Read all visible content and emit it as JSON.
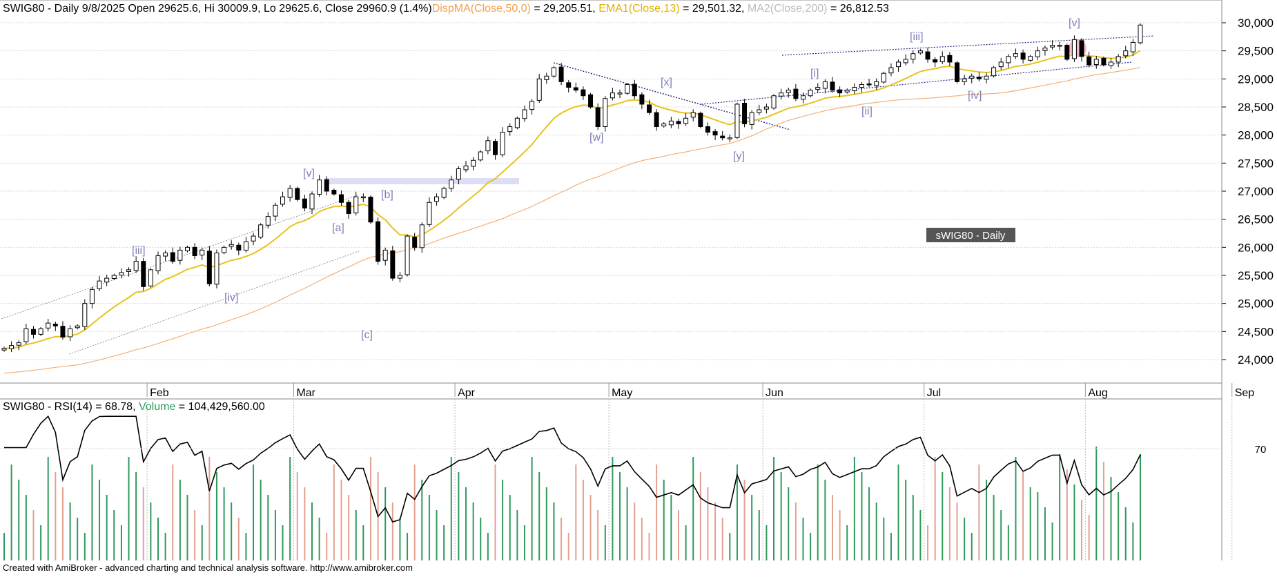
{
  "header": {
    "symbol_line": "SWIG80 - Daily 9/8/2025 Open 29625.6, Hi 30009.9, Lo 29625.6, Close 29960.9 (1.4%)",
    "dispma_label": "DispMA(Close,50,0)",
    "dispma_value": " = 29,205.51, ",
    "ema_label": "EMA1(Close,13)",
    "ema_value": " = 29,501.32, ",
    "ma200_label": "MA2(Close,200)",
    "ma200_value": " = 26,812.53"
  },
  "watermark": "sWIG80 - Daily",
  "lower_header": {
    "rsi_label": "SWIG80 - RSI(14) = 68.78, ",
    "volume_label": "Volume",
    "volume_value": " = 104,429,560.00"
  },
  "footer": "Created with AmiBroker - advanced charting and technical analysis software. http://www.amibroker.com",
  "colors": {
    "candle_up_fill": "#ffffff",
    "candle_down_fill": "#000000",
    "ema13": "#e8c21c",
    "ma50": "#f2b07a",
    "ma200": "#bbbbbb",
    "wave_labels": "#7d7fb8",
    "rsi_line": "#000000",
    "volume_up": "#2e9a5a",
    "volume_down": "#e3a090",
    "grid": "#d0d0d0"
  },
  "chart_data": [
    {
      "type": "candlestick",
      "title": "SWIG80 - Daily",
      "x_axis_months": [
        "Feb",
        "Mar",
        "Apr",
        "May",
        "Jun",
        "Jul",
        "Aug",
        "Sep"
      ],
      "y_ticks": [
        "24,000",
        "24,500",
        "25,000",
        "25,500",
        "26,000",
        "26,500",
        "27,000",
        "27,500",
        "28,000",
        "28,500",
        "29,000",
        "29,500",
        "30,000"
      ],
      "ylim": [
        23600,
        30300
      ],
      "grid": true,
      "last_bar": {
        "date": "9/8/2025",
        "open": 29625.6,
        "high": 30009.9,
        "low": 29625.6,
        "close": 29960.9,
        "change_pct": 1.4
      },
      "indicators": {
        "dispma_close_50": 29205.51,
        "ema_close_13": 29501.32,
        "ma_close_200": 26812.53
      },
      "closes": [
        24200,
        24250,
        24300,
        24550,
        24450,
        24550,
        24650,
        24600,
        24400,
        24550,
        24600,
        25000,
        25250,
        25400,
        25450,
        25500,
        25550,
        25600,
        25750,
        25300,
        25600,
        25850,
        25900,
        25750,
        25950,
        26000,
        25850,
        25950,
        25350,
        25900,
        26000,
        26050,
        25950,
        26100,
        26200,
        26400,
        26550,
        26750,
        26900,
        27050,
        26850,
        26700,
        26950,
        27200,
        27000,
        26950,
        26800,
        26600,
        26900,
        26900,
        26450,
        25750,
        25950,
        25450,
        25500,
        26200,
        26000,
        26400,
        26800,
        26900,
        27050,
        27200,
        27400,
        27450,
        27550,
        27700,
        27900,
        27650,
        28050,
        28150,
        28300,
        28450,
        28600,
        29000,
        29050,
        29200,
        28950,
        28850,
        28800,
        28700,
        28500,
        28150,
        28650,
        28750,
        28750,
        28900,
        28700,
        28550,
        28400,
        28150,
        28200,
        28250,
        28200,
        28300,
        28400,
        28150,
        28050,
        28000,
        27950,
        27950,
        28550,
        28200,
        28400,
        28450,
        28500,
        28700,
        28750,
        28800,
        28650,
        28700,
        28800,
        28850,
        28950,
        28800,
        28750,
        28800,
        28850,
        28900,
        28900,
        28950,
        29100,
        29200,
        29300,
        29350,
        29450,
        29500,
        29350,
        29300,
        29400,
        29300,
        28950,
        29000,
        29050,
        29000,
        29050,
        29200,
        29300,
        29400,
        29450,
        29350,
        29400,
        29500,
        29550,
        29600,
        29600,
        29350,
        29700,
        29400,
        29250,
        29350,
        29250,
        29300,
        29400,
        29500,
        29650,
        29960
      ]
    },
    {
      "type": "line",
      "title": "SWIG80 - RSI(14)",
      "series": [
        {
          "name": "RSI(14)",
          "last_value": 68.78
        }
      ],
      "y_ticks": [
        "70"
      ],
      "ylim": [
        20,
        85
      ]
    },
    {
      "type": "bar",
      "series": [
        {
          "name": "Volume",
          "last_value": 104429560.0
        }
      ]
    }
  ],
  "wave_labels": [
    "[iii]",
    "[iv]",
    "[v]",
    "[a]",
    "[b]",
    "[c]",
    "[w]",
    "[x]",
    "[y]",
    "[i]",
    "[ii]",
    "[iii]",
    "[iv]",
    "[v]"
  ]
}
